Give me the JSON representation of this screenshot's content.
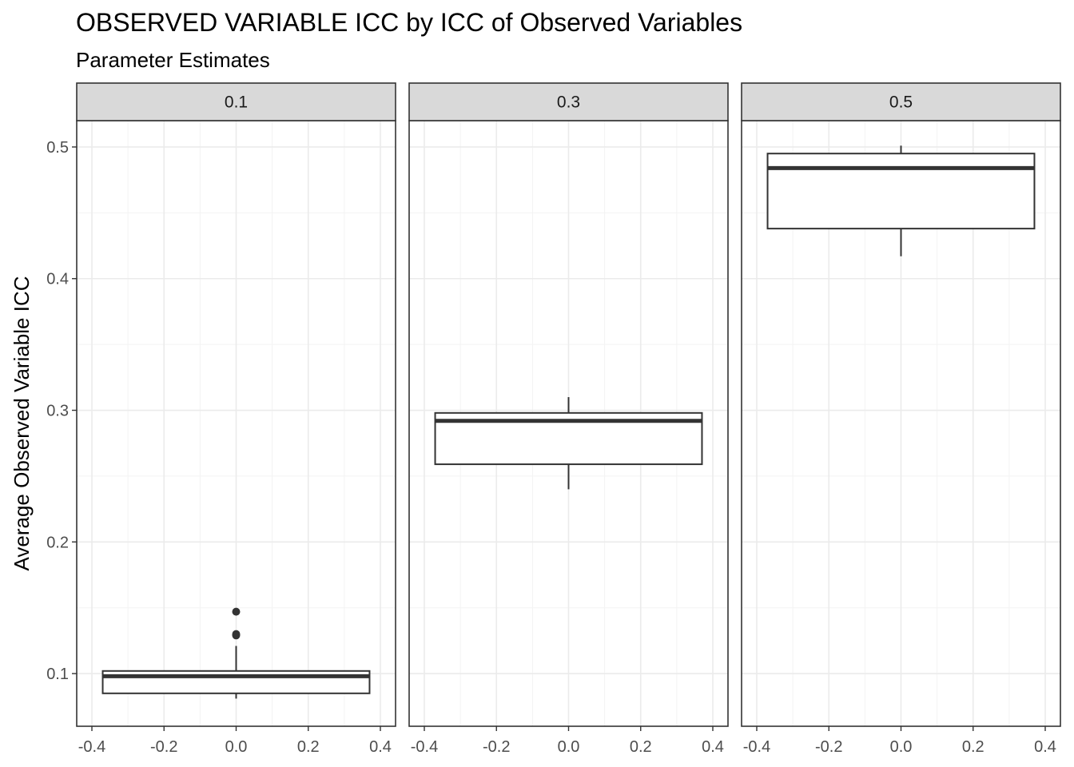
{
  "title": "OBSERVED VARIABLE ICC by ICC of Observed Variables",
  "subtitle": "Parameter Estimates",
  "chart_data": {
    "type": "boxplot",
    "ylabel": "Average Observed Variable ICC",
    "xlabel": "",
    "ylim": [
      0.06,
      0.52
    ],
    "y_ticks": [
      0.1,
      0.2,
      0.3,
      0.4,
      0.5
    ],
    "y_tick_labels": [
      "0.1",
      "0.2",
      "0.3",
      "0.4",
      "0.5"
    ],
    "xlim": [
      -0.4,
      0.4
    ],
    "x_ticks": [
      -0.4,
      -0.2,
      0.0,
      0.2,
      0.4
    ],
    "x_tick_labels": [
      "-0.4",
      "-0.2",
      "0.0",
      "0.2",
      "0.4"
    ],
    "grid": true,
    "facets": [
      {
        "label": "0.1",
        "box": {
          "min": 0.081,
          "q1": 0.085,
          "median": 0.098,
          "q3": 0.102,
          "max": 0.121
        },
        "outliers": [
          0.129,
          0.13,
          0.147
        ]
      },
      {
        "label": "0.3",
        "box": {
          "min": 0.24,
          "q1": 0.259,
          "median": 0.292,
          "q3": 0.298,
          "max": 0.31
        },
        "outliers": []
      },
      {
        "label": "0.5",
        "box": {
          "min": 0.417,
          "q1": 0.438,
          "median": 0.484,
          "q3": 0.495,
          "max": 0.501
        },
        "outliers": []
      }
    ]
  }
}
